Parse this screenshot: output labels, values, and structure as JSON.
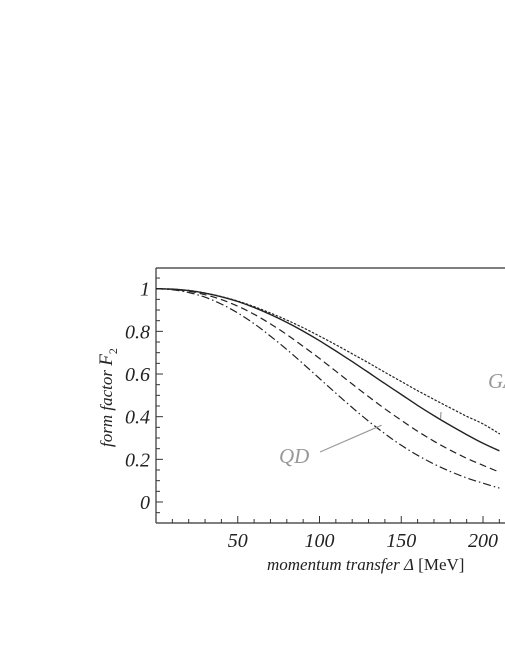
{
  "chart_data": {
    "type": "line",
    "title": "",
    "xlabel": {
      "italic": "momentum transfer Δ",
      "unit": " [MeV]"
    },
    "ylabel": {
      "text": "form factor ",
      "symbol": "F",
      "subscript": "2"
    },
    "xlim": [
      0,
      210
    ],
    "ylim": [
      -0.1,
      1.1
    ],
    "x_ticks": [
      50,
      100,
      150,
      200
    ],
    "x_tick_labels": [
      "50",
      "100",
      "150",
      "200"
    ],
    "y_ticks": [
      0,
      0.2,
      0.4,
      0.6,
      0.8,
      1
    ],
    "y_tick_labels": [
      "0",
      "0.2",
      "0.4",
      "0.6",
      "0.8",
      "1"
    ],
    "grid": false,
    "x": [
      0,
      10,
      20,
      30,
      40,
      50,
      60,
      70,
      80,
      90,
      100,
      110,
      120,
      130,
      140,
      150,
      160,
      170,
      180,
      190,
      200,
      210
    ],
    "series": [
      {
        "style": "dotted",
        "values": [
          1.0,
          0.998,
          0.992,
          0.98,
          0.963,
          0.942,
          0.916,
          0.886,
          0.853,
          0.817,
          0.778,
          0.737,
          0.695,
          0.652,
          0.608,
          0.565,
          0.522,
          0.481,
          0.441,
          0.402,
          0.366,
          0.32
        ]
      },
      {
        "style": "solid",
        "values": [
          1.0,
          0.998,
          0.991,
          0.979,
          0.962,
          0.94,
          0.912,
          0.879,
          0.842,
          0.801,
          0.756,
          0.708,
          0.658,
          0.607,
          0.555,
          0.504,
          0.453,
          0.405,
          0.359,
          0.316,
          0.275,
          0.24
        ]
      },
      {
        "style": "dashed",
        "values": [
          1.0,
          0.997,
          0.988,
          0.972,
          0.949,
          0.918,
          0.88,
          0.835,
          0.785,
          0.73,
          0.673,
          0.613,
          0.553,
          0.494,
          0.437,
          0.383,
          0.332,
          0.285,
          0.243,
          0.205,
          0.172,
          0.14
        ]
      },
      {
        "style": "dashdot",
        "values": [
          1.0,
          0.995,
          0.982,
          0.96,
          0.928,
          0.886,
          0.836,
          0.778,
          0.715,
          0.648,
          0.579,
          0.51,
          0.443,
          0.379,
          0.32,
          0.266,
          0.219,
          0.178,
          0.143,
          0.113,
          0.088,
          0.065
        ]
      }
    ],
    "annotations": [
      {
        "text": "QD",
        "target_x": 138,
        "target_y": 0.36
      },
      {
        "text": "GA",
        "target_x": 174,
        "target_y": 0.39
      }
    ]
  }
}
